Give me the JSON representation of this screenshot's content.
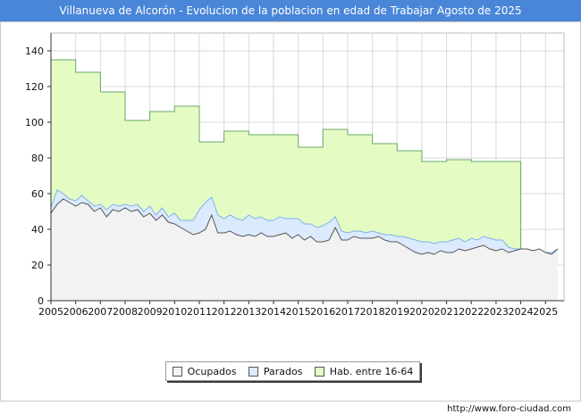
{
  "title": "Villanueva de Alcorón - Evolucion de la poblacion en edad de Trabajar Agosto de 2025",
  "footer_url": "http://www.foro-ciudad.com",
  "chart_data": {
    "type": "area",
    "title": "Villanueva de Alcorón - Evolucion de la poblacion en edad de Trabajar Agosto de 2025",
    "xlabel": "",
    "ylabel": "",
    "xlim": [
      2005,
      2025.75
    ],
    "ylim": [
      0,
      150
    ],
    "x_ticks": [
      "2005",
      "2006",
      "2007",
      "2008",
      "2009",
      "2010",
      "2011",
      "2012",
      "2013",
      "2014",
      "2015",
      "2016",
      "2017",
      "2018",
      "2019",
      "2020",
      "2021",
      "2022",
      "2023",
      "2024",
      "2025"
    ],
    "y_ticks": [
      0,
      20,
      40,
      60,
      80,
      100,
      120,
      140
    ],
    "grid": true,
    "legend_position": "bottom",
    "series": [
      {
        "name": "Ocupados",
        "color": "#f2f2f2",
        "stroke": "#555555",
        "x": [
          2005.0,
          2005.25,
          2005.5,
          2005.75,
          2006.0,
          2006.25,
          2006.5,
          2006.75,
          2007.0,
          2007.25,
          2007.5,
          2007.75,
          2008.0,
          2008.25,
          2008.5,
          2008.75,
          2009.0,
          2009.25,
          2009.5,
          2009.75,
          2010.0,
          2010.25,
          2010.5,
          2010.75,
          2011.0,
          2011.25,
          2011.5,
          2011.75,
          2012.0,
          2012.25,
          2012.5,
          2012.75,
          2013.0,
          2013.25,
          2013.5,
          2013.75,
          2014.0,
          2014.25,
          2014.5,
          2014.75,
          2015.0,
          2015.25,
          2015.5,
          2015.75,
          2016.0,
          2016.25,
          2016.5,
          2016.75,
          2017.0,
          2017.25,
          2017.5,
          2017.75,
          2018.0,
          2018.25,
          2018.5,
          2018.75,
          2019.0,
          2019.25,
          2019.5,
          2019.75,
          2020.0,
          2020.25,
          2020.5,
          2020.75,
          2021.0,
          2021.25,
          2021.5,
          2021.75,
          2022.0,
          2022.25,
          2022.5,
          2022.75,
          2023.0,
          2023.25,
          2023.5,
          2023.75,
          2024.0,
          2024.25,
          2024.5,
          2024.75,
          2025.0,
          2025.25,
          2025.5
        ],
        "values": [
          49,
          54,
          57,
          55,
          53,
          55,
          54,
          50,
          52,
          47,
          51,
          50,
          52,
          50,
          51,
          47,
          49,
          45,
          48,
          44,
          43,
          41,
          39,
          37,
          38,
          40,
          48,
          38,
          38,
          39,
          37,
          36,
          37,
          36,
          38,
          36,
          36,
          37,
          38,
          35,
          37,
          34,
          36,
          33,
          33,
          34,
          41,
          34,
          34,
          36,
          35,
          35,
          35,
          36,
          34,
          33,
          33,
          31,
          29,
          27,
          26,
          27,
          26,
          28,
          27,
          27,
          29,
          28,
          29,
          30,
          31,
          29,
          28,
          29,
          27,
          28,
          29,
          29,
          28,
          29,
          27,
          26,
          29
        ]
      },
      {
        "name": "Parados",
        "color": "#dbeafd",
        "stroke": "#7eb1e8",
        "x": [
          2005.0,
          2005.25,
          2005.5,
          2005.75,
          2006.0,
          2006.25,
          2006.5,
          2006.75,
          2007.0,
          2007.25,
          2007.5,
          2007.75,
          2008.0,
          2008.25,
          2008.5,
          2008.75,
          2009.0,
          2009.25,
          2009.5,
          2009.75,
          2010.0,
          2010.25,
          2010.5,
          2010.75,
          2011.0,
          2011.25,
          2011.5,
          2011.75,
          2012.0,
          2012.25,
          2012.5,
          2012.75,
          2013.0,
          2013.25,
          2013.5,
          2013.75,
          2014.0,
          2014.25,
          2014.5,
          2014.75,
          2015.0,
          2015.25,
          2015.5,
          2015.75,
          2016.0,
          2016.25,
          2016.5,
          2016.75,
          2017.0,
          2017.25,
          2017.5,
          2017.75,
          2018.0,
          2018.25,
          2018.5,
          2018.75,
          2019.0,
          2019.25,
          2019.5,
          2019.75,
          2020.0,
          2020.25,
          2020.5,
          2020.75,
          2021.0,
          2021.25,
          2021.5,
          2021.75,
          2022.0,
          2022.25,
          2022.5,
          2022.75,
          2023.0,
          2023.25,
          2023.5,
          2023.75,
          2024.0,
          2024.25,
          2024.5,
          2024.75,
          2025.0,
          2025.25,
          2025.5
        ],
        "values": [
          3,
          8,
          3,
          2,
          3,
          4,
          2,
          3,
          2,
          4,
          3,
          3,
          2,
          3,
          3,
          3,
          4,
          3,
          4,
          3,
          6,
          4,
          6,
          8,
          13,
          15,
          10,
          10,
          8,
          9,
          9,
          9,
          11,
          10,
          9,
          9,
          9,
          10,
          8,
          11,
          9,
          9,
          7,
          8,
          9,
          10,
          6,
          5,
          4,
          3,
          4,
          3,
          4,
          2,
          3,
          4,
          3,
          5,
          6,
          7,
          7,
          6,
          6,
          5,
          6,
          7,
          6,
          5,
          6,
          4,
          5,
          6,
          6,
          5,
          3,
          1,
          0,
          0,
          0,
          0,
          0,
          1,
          0
        ]
      },
      {
        "name": "Hab. entre 16-64",
        "color": "#e4fcc4",
        "stroke": "#6aa86a",
        "x": [
          2005,
          2006,
          2007,
          2008,
          2009,
          2010,
          2011,
          2012,
          2013,
          2014,
          2015,
          2016,
          2017,
          2018,
          2019,
          2020,
          2021,
          2022,
          2023,
          2024
        ],
        "values": [
          135,
          128,
          117,
          101,
          106,
          109,
          89,
          95,
          93,
          93,
          86,
          96,
          93,
          88,
          84,
          78,
          79,
          78,
          78,
          0
        ]
      }
    ]
  },
  "legend": {
    "items": [
      {
        "label": "Ocupados",
        "color": "#f2f2f2"
      },
      {
        "label": "Parados",
        "color": "#dbeafd"
      },
      {
        "label": "Hab. entre 16-64",
        "color": "#e4fcc4"
      }
    ]
  }
}
